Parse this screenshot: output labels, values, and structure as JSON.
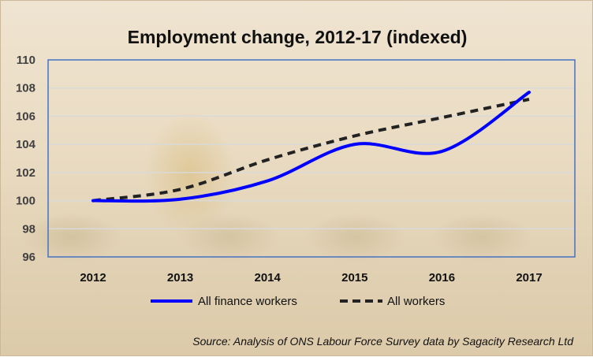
{
  "chart_data": {
    "type": "line",
    "title": "Employment change, 2012-17 (indexed)",
    "xlabel": "",
    "ylabel": "",
    "categories": [
      "2012",
      "2013",
      "2014",
      "2015",
      "2016",
      "2017"
    ],
    "ylim": [
      96,
      110
    ],
    "yticks": [
      "96",
      "98",
      "100",
      "102",
      "104",
      "106",
      "108",
      "110"
    ],
    "grid": true,
    "legend": "bottom",
    "series": [
      {
        "name": "All finance workers",
        "values": [
          100,
          100.1,
          101.4,
          104.0,
          103.5,
          107.7
        ],
        "color": "#0000ff",
        "style": "solid",
        "smooth": true
      },
      {
        "name": "All workers",
        "values": [
          100,
          100.8,
          102.9,
          104.6,
          105.9,
          107.2
        ],
        "color": "#222222",
        "style": "dashed",
        "smooth": true
      }
    ],
    "source": "Source: Analysis of ONS Labour Force Survey data by Sagacity Research Ltd"
  }
}
